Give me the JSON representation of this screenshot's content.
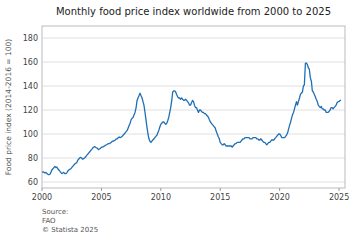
{
  "chart_data": {
    "type": "line",
    "title": "Monthly food price index worldwide from 2000 to 2025",
    "ylabel": "Food price index (2014-2016 = 100)",
    "source_text": "Source:\nFAO\n© Statista 2025",
    "color": "#1f6fb5",
    "grid": true,
    "xlim": [
      2000,
      2025.5
    ],
    "xticks": [
      2000,
      2005,
      2010,
      2015,
      2020,
      2025
    ],
    "ylim": [
      55,
      190
    ],
    "yticks": [
      60,
      80,
      100,
      120,
      140,
      160,
      180
    ],
    "x": [
      2000.0,
      2000.08,
      2000.17,
      2000.25,
      2000.33,
      2000.42,
      2000.5,
      2000.58,
      2000.67,
      2000.75,
      2000.83,
      2000.92,
      2001.0,
      2001.08,
      2001.17,
      2001.25,
      2001.33,
      2001.42,
      2001.5,
      2001.58,
      2001.67,
      2001.75,
      2001.83,
      2001.92,
      2002.0,
      2002.08,
      2002.17,
      2002.25,
      2002.33,
      2002.42,
      2002.5,
      2002.58,
      2002.67,
      2002.75,
      2002.83,
      2002.92,
      2003.0,
      2003.08,
      2003.17,
      2003.25,
      2003.33,
      2003.42,
      2003.5,
      2003.58,
      2003.67,
      2003.75,
      2003.83,
      2003.92,
      2004.0,
      2004.08,
      2004.17,
      2004.25,
      2004.33,
      2004.42,
      2004.5,
      2004.58,
      2004.67,
      2004.75,
      2004.83,
      2004.92,
      2005.0,
      2005.08,
      2005.17,
      2005.25,
      2005.33,
      2005.42,
      2005.5,
      2005.58,
      2005.67,
      2005.75,
      2005.83,
      2005.92,
      2006.0,
      2006.08,
      2006.17,
      2006.25,
      2006.33,
      2006.42,
      2006.5,
      2006.58,
      2006.67,
      2006.75,
      2006.83,
      2006.92,
      2007.0,
      2007.08,
      2007.17,
      2007.25,
      2007.33,
      2007.42,
      2007.5,
      2007.58,
      2007.67,
      2007.75,
      2007.83,
      2007.92,
      2008.0,
      2008.08,
      2008.17,
      2008.25,
      2008.33,
      2008.42,
      2008.5,
      2008.58,
      2008.67,
      2008.75,
      2008.83,
      2008.92,
      2009.0,
      2009.08,
      2009.17,
      2009.25,
      2009.33,
      2009.42,
      2009.5,
      2009.58,
      2009.67,
      2009.75,
      2009.83,
      2009.92,
      2010.0,
      2010.08,
      2010.17,
      2010.25,
      2010.33,
      2010.42,
      2010.5,
      2010.58,
      2010.67,
      2010.75,
      2010.83,
      2010.92,
      2011.0,
      2011.08,
      2011.17,
      2011.25,
      2011.33,
      2011.42,
      2011.5,
      2011.58,
      2011.67,
      2011.75,
      2011.83,
      2011.92,
      2012.0,
      2012.08,
      2012.17,
      2012.25,
      2012.33,
      2012.42,
      2012.5,
      2012.58,
      2012.67,
      2012.75,
      2012.83,
      2012.92,
      2013.0,
      2013.08,
      2013.17,
      2013.25,
      2013.33,
      2013.42,
      2013.5,
      2013.58,
      2013.67,
      2013.75,
      2013.83,
      2013.92,
      2014.0,
      2014.08,
      2014.17,
      2014.25,
      2014.33,
      2014.42,
      2014.5,
      2014.58,
      2014.67,
      2014.75,
      2014.83,
      2014.92,
      2015.0,
      2015.08,
      2015.17,
      2015.25,
      2015.33,
      2015.42,
      2015.5,
      2015.58,
      2015.67,
      2015.75,
      2015.83,
      2015.92,
      2016.0,
      2016.08,
      2016.17,
      2016.25,
      2016.33,
      2016.42,
      2016.5,
      2016.58,
      2016.67,
      2016.75,
      2016.83,
      2016.92,
      2017.0,
      2017.08,
      2017.17,
      2017.25,
      2017.33,
      2017.42,
      2017.5,
      2017.58,
      2017.67,
      2017.75,
      2017.83,
      2017.92,
      2018.0,
      2018.08,
      2018.17,
      2018.25,
      2018.33,
      2018.42,
      2018.5,
      2018.58,
      2018.67,
      2018.75,
      2018.83,
      2018.92,
      2019.0,
      2019.08,
      2019.17,
      2019.25,
      2019.33,
      2019.42,
      2019.5,
      2019.58,
      2019.67,
      2019.75,
      2019.83,
      2019.92,
      2020.0,
      2020.08,
      2020.17,
      2020.25,
      2020.33,
      2020.42,
      2020.5,
      2020.58,
      2020.67,
      2020.75,
      2020.83,
      2020.92,
      2021.0,
      2021.08,
      2021.17,
      2021.25,
      2021.33,
      2021.42,
      2021.5,
      2021.58,
      2021.67,
      2021.75,
      2021.83,
      2021.92,
      2022.0,
      2022.08,
      2022.17,
      2022.25,
      2022.33,
      2022.42,
      2022.5,
      2022.58,
      2022.67,
      2022.75,
      2022.83,
      2022.92,
      2023.0,
      2023.08,
      2023.17,
      2023.25,
      2023.33,
      2023.42,
      2023.5,
      2023.58,
      2023.67,
      2023.75,
      2023.83,
      2023.92,
      2024.0,
      2024.08,
      2024.17,
      2024.25,
      2024.33,
      2024.42,
      2024.5,
      2024.58,
      2024.67,
      2024.75,
      2024.83,
      2024.92,
      2025.0,
      2025.08,
      2025.17
    ],
    "values": [
      68,
      68.5,
      68.0,
      67.5,
      68.0,
      67.0,
      66.5,
      66.0,
      66.5,
      68.0,
      70.0,
      71.0,
      72,
      73,
      72,
      72.5,
      71,
      70,
      69,
      68,
      67,
      67.5,
      68,
      67,
      67,
      67.5,
      69,
      70,
      70.5,
      71,
      72,
      73,
      74,
      75,
      75.5,
      76,
      78,
      79,
      80,
      80.5,
      80,
      79,
      79.5,
      80,
      81,
      82,
      83,
      84,
      85,
      86,
      87,
      88,
      89,
      89.5,
      89,
      88.5,
      88,
      87,
      87.5,
      88,
      89,
      89,
      89.5,
      90,
      90.5,
      91,
      91.5,
      92,
      92,
      92.5,
      93,
      94,
      94,
      94.5,
      95,
      96,
      96,
      97,
      97.5,
      97,
      97.5,
      98,
      99,
      100,
      101,
      102,
      103,
      105,
      107,
      109,
      112,
      113,
      114,
      116,
      118,
      122,
      128,
      130,
      132,
      134,
      132,
      130,
      127,
      124,
      118,
      112,
      106,
      100,
      96,
      94,
      93,
      94,
      95,
      96,
      97,
      98,
      99,
      101,
      103,
      106,
      108,
      109,
      110,
      110,
      109,
      108,
      109,
      111,
      114,
      118,
      122,
      128,
      135,
      136,
      136,
      135,
      133,
      131,
      130,
      130,
      129,
      130,
      129,
      128,
      128,
      129,
      128,
      127,
      126,
      124,
      124,
      126,
      128,
      127,
      124,
      122,
      122,
      120,
      118,
      120,
      120,
      119,
      118,
      118,
      117,
      117,
      116,
      115,
      114,
      112,
      110,
      109,
      108,
      107,
      106,
      105,
      102,
      100,
      98,
      96,
      93,
      92,
      91,
      91,
      92,
      91,
      90,
      90,
      90,
      90,
      90,
      90,
      89,
      90,
      91,
      92,
      92,
      93,
      93,
      93,
      93,
      94,
      95,
      96,
      96,
      97,
      97,
      97,
      97,
      97,
      96,
      96,
      96,
      97,
      97,
      97,
      97,
      96,
      96,
      95,
      95,
      96,
      95,
      94,
      93,
      93,
      92,
      91,
      92,
      93,
      93,
      94,
      95,
      95,
      95,
      96,
      97,
      98,
      99,
      100,
      100,
      99,
      97,
      97,
      97,
      97,
      98,
      99,
      101,
      104,
      107,
      110,
      113,
      116,
      118,
      121,
      124,
      127,
      124,
      127,
      130,
      133,
      134,
      135,
      140,
      141,
      159,
      159,
      158,
      155,
      154,
      147,
      144,
      136,
      135,
      133,
      131,
      129,
      127,
      124,
      123,
      122,
      123,
      121,
      121,
      120,
      120,
      118,
      118,
      118,
      119,
      120,
      122,
      122,
      121,
      122,
      123,
      124,
      126,
      127,
      127,
      128,
      128
    ]
  }
}
